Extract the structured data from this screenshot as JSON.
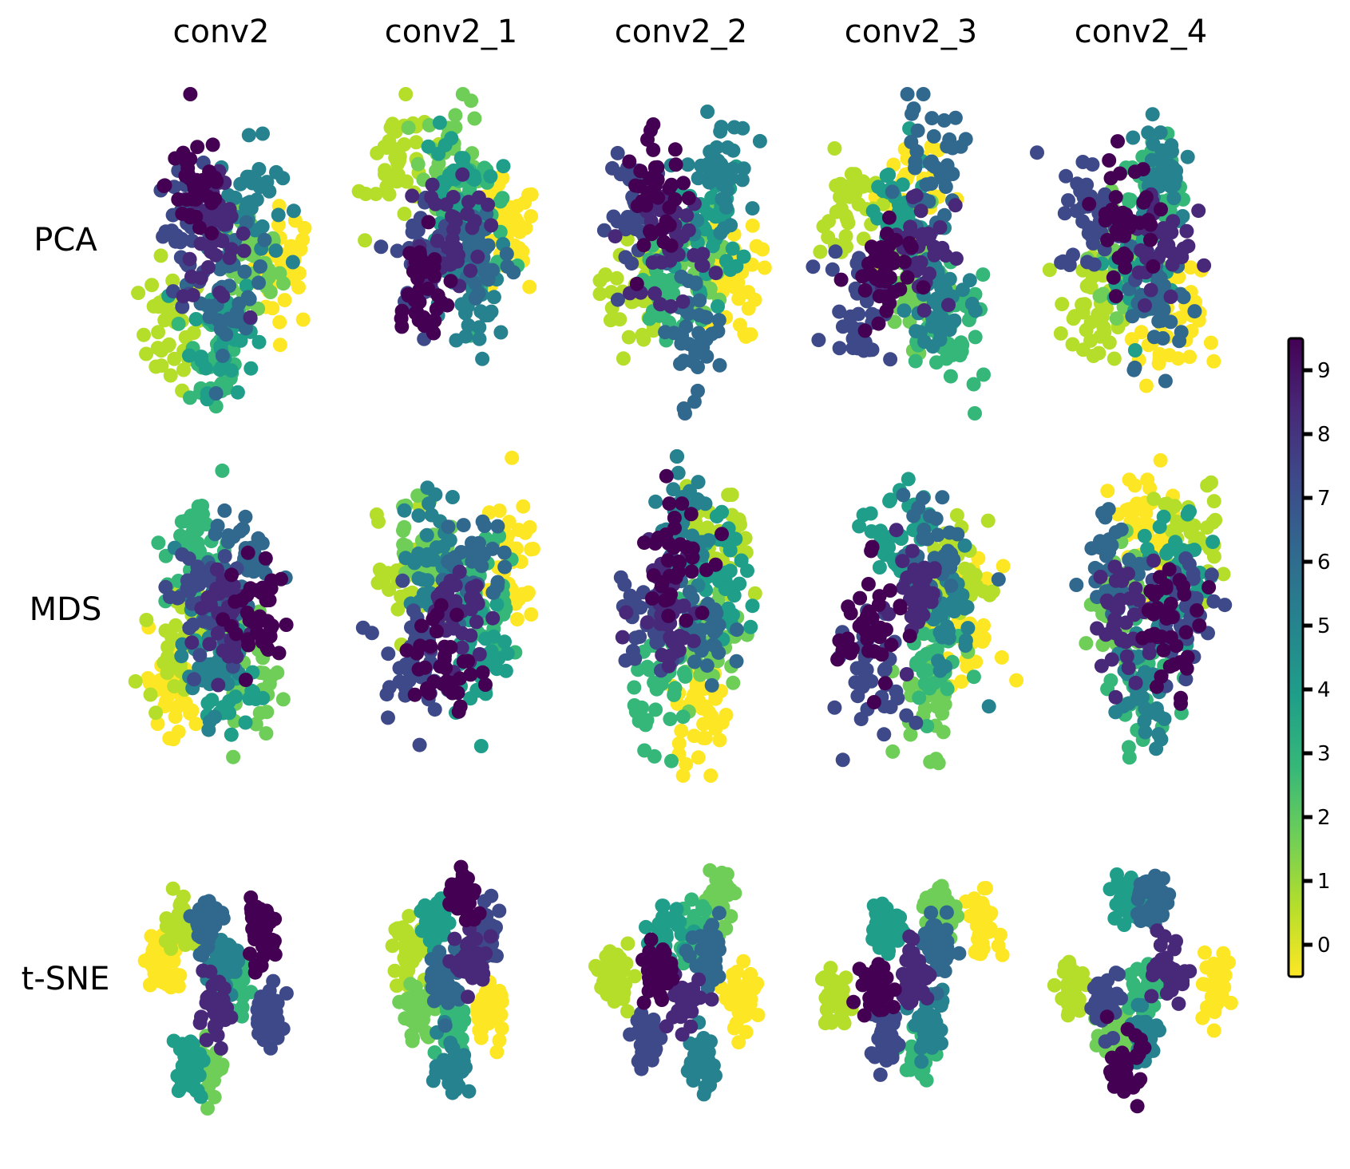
{
  "chart_data": {
    "type": "scatter",
    "columns": [
      "conv2",
      "conv2_1",
      "conv2_2",
      "conv2_3",
      "conv2_4"
    ],
    "rows": [
      "PCA",
      "MDS",
      "t-SNE"
    ],
    "colorbar": {
      "min": 0,
      "max": 9,
      "ticks": [
        0,
        1,
        2,
        3,
        4,
        5,
        6,
        7,
        8,
        9
      ],
      "colormap": "viridis reversed (0 = yellow, 9 = dark purple)"
    },
    "palette": [
      "#fde725",
      "#b5de2b",
      "#6ece58",
      "#35b779",
      "#1f9e89",
      "#26828e",
      "#31688e",
      "#3e4989",
      "#482878",
      "#440154"
    ],
    "panels": [
      {
        "col": "conv2",
        "row": "PCA",
        "clusters": [
          [
            9,
            -0.3,
            0.55
          ],
          [
            8,
            -0.1,
            0.1
          ],
          [
            7,
            -0.4,
            0.2
          ],
          [
            6,
            0.1,
            -0.3
          ],
          [
            5,
            0.3,
            0.4
          ],
          [
            4,
            0.0,
            -0.6
          ],
          [
            3,
            -0.1,
            -0.8
          ],
          [
            2,
            0.3,
            -0.1
          ],
          [
            1,
            -0.6,
            -0.6
          ],
          [
            0,
            0.7,
            -0.1
          ]
        ]
      },
      {
        "col": "conv2_1",
        "row": "PCA",
        "clusters": [
          [
            9,
            -0.4,
            -0.3
          ],
          [
            8,
            0.0,
            0.2
          ],
          [
            7,
            -0.3,
            0.0
          ],
          [
            6,
            0.3,
            0.0
          ],
          [
            5,
            0.2,
            -0.4
          ],
          [
            4,
            0.0,
            0.5
          ],
          [
            3,
            0.3,
            0.3
          ],
          [
            2,
            0.0,
            0.75
          ],
          [
            1,
            -0.6,
            0.7
          ],
          [
            0,
            0.6,
            0.1
          ]
        ]
      },
      {
        "col": "conv2_2",
        "row": "PCA",
        "clusters": [
          [
            9,
            -0.3,
            0.45
          ],
          [
            8,
            -0.1,
            0.1
          ],
          [
            7,
            -0.5,
            0.3
          ],
          [
            6,
            0.1,
            -0.6
          ],
          [
            5,
            0.4,
            0.6
          ],
          [
            4,
            0.3,
            0.2
          ],
          [
            3,
            -0.2,
            -0.3
          ],
          [
            2,
            0.2,
            -0.1
          ],
          [
            1,
            -0.6,
            -0.3
          ],
          [
            0,
            0.5,
            -0.2
          ]
        ]
      },
      {
        "col": "conv2_3",
        "row": "PCA",
        "clusters": [
          [
            9,
            -0.4,
            -0.2
          ],
          [
            8,
            0.1,
            0.1
          ],
          [
            7,
            -0.6,
            -0.4
          ],
          [
            6,
            0.2,
            0.7
          ],
          [
            5,
            0.3,
            -0.4
          ],
          [
            4,
            -0.2,
            0.3
          ],
          [
            3,
            0.5,
            -0.7
          ],
          [
            2,
            0.0,
            -0.2
          ],
          [
            1,
            -0.7,
            0.3
          ],
          [
            0,
            0.0,
            0.5
          ]
        ]
      },
      {
        "col": "conv2_4",
        "row": "PCA",
        "clusters": [
          [
            9,
            -0.2,
            0.3
          ],
          [
            8,
            0.2,
            0.1
          ],
          [
            7,
            -0.6,
            0.3
          ],
          [
            6,
            0.2,
            -0.4
          ],
          [
            5,
            0.2,
            0.7
          ],
          [
            4,
            0.0,
            -0.2
          ],
          [
            3,
            0.1,
            0.5
          ],
          [
            2,
            -0.2,
            0.0
          ],
          [
            1,
            -0.6,
            -0.5
          ],
          [
            0,
            0.3,
            -0.6
          ]
        ]
      },
      {
        "col": "conv2",
        "row": "MDS",
        "clusters": [
          [
            9,
            0.4,
            0.0
          ],
          [
            8,
            0.0,
            0.0
          ],
          [
            7,
            -0.3,
            0.2
          ],
          [
            6,
            0.2,
            0.4
          ],
          [
            5,
            -0.2,
            -0.3
          ],
          [
            4,
            0.0,
            -0.5
          ],
          [
            3,
            -0.3,
            0.5
          ],
          [
            2,
            0.3,
            -0.4
          ],
          [
            1,
            -0.5,
            -0.2
          ],
          [
            0,
            -0.6,
            -0.6
          ]
        ]
      },
      {
        "col": "conv2_1",
        "row": "MDS",
        "clusters": [
          [
            9,
            -0.1,
            -0.4
          ],
          [
            8,
            0.0,
            0.0
          ],
          [
            7,
            -0.5,
            -0.3
          ],
          [
            6,
            0.2,
            0.4
          ],
          [
            5,
            -0.2,
            0.5
          ],
          [
            4,
            0.3,
            -0.3
          ],
          [
            3,
            0.4,
            0.1
          ],
          [
            2,
            -0.3,
            0.6
          ],
          [
            1,
            -0.5,
            0.3
          ],
          [
            0,
            0.6,
            0.4
          ]
        ]
      },
      {
        "col": "conv2_2",
        "row": "MDS",
        "clusters": [
          [
            9,
            -0.1,
            0.5
          ],
          [
            8,
            -0.2,
            0.1
          ],
          [
            7,
            -0.4,
            0.0
          ],
          [
            6,
            0.2,
            -0.2
          ],
          [
            5,
            0.0,
            0.7
          ],
          [
            4,
            0.5,
            0.2
          ],
          [
            3,
            -0.2,
            -0.5
          ],
          [
            2,
            0.3,
            -0.2
          ],
          [
            1,
            0.4,
            0.5
          ],
          [
            0,
            0.2,
            -0.7
          ]
        ]
      },
      {
        "col": "conv2_3",
        "row": "MDS",
        "clusters": [
          [
            9,
            -0.5,
            -0.1
          ],
          [
            8,
            0.0,
            0.2
          ],
          [
            7,
            -0.4,
            -0.5
          ],
          [
            6,
            0.2,
            0.5
          ],
          [
            5,
            0.4,
            0.0
          ],
          [
            4,
            -0.2,
            0.6
          ],
          [
            3,
            0.2,
            -0.3
          ],
          [
            2,
            0.2,
            -0.6
          ],
          [
            1,
            0.5,
            0.3
          ],
          [
            0,
            0.6,
            -0.1
          ]
        ]
      },
      {
        "col": "conv2_4",
        "row": "MDS",
        "clusters": [
          [
            9,
            0.3,
            -0.1
          ],
          [
            8,
            -0.2,
            0.0
          ],
          [
            7,
            0.5,
            0.0
          ],
          [
            6,
            -0.3,
            0.4
          ],
          [
            5,
            0.0,
            -0.5
          ],
          [
            4,
            0.4,
            0.3
          ],
          [
            3,
            0.0,
            -0.6
          ],
          [
            2,
            -0.3,
            0.2
          ],
          [
            1,
            0.5,
            0.6
          ],
          [
            0,
            0.0,
            0.7
          ]
        ]
      },
      {
        "col": "conv2",
        "row": "t-SNE",
        "clusters": [
          [
            9,
            0.4,
            0.4
          ],
          [
            8,
            -0.1,
            -0.2
          ],
          [
            7,
            0.5,
            -0.2
          ],
          [
            6,
            -0.2,
            0.5
          ],
          [
            5,
            0.0,
            0.2
          ],
          [
            4,
            -0.4,
            -0.6
          ],
          [
            3,
            0.1,
            0.0
          ],
          [
            2,
            -0.2,
            -0.6
          ],
          [
            1,
            -0.5,
            0.5
          ],
          [
            0,
            -0.7,
            0.2
          ]
        ]
      },
      {
        "col": "conv2_1",
        "row": "t-SNE",
        "clusters": [
          [
            9,
            0.1,
            0.7
          ],
          [
            8,
            0.2,
            0.2
          ],
          [
            7,
            0.4,
            0.4
          ],
          [
            6,
            -0.1,
            0.1
          ],
          [
            5,
            0.0,
            -0.6
          ],
          [
            4,
            -0.2,
            0.5
          ],
          [
            3,
            0.0,
            -0.3
          ],
          [
            2,
            -0.4,
            -0.2
          ],
          [
            1,
            -0.5,
            0.3
          ],
          [
            0,
            0.4,
            -0.2
          ]
        ]
      },
      {
        "col": "conv2_2",
        "row": "t-SNE",
        "clusters": [
          [
            9,
            -0.3,
            0.1
          ],
          [
            8,
            0.0,
            -0.1
          ],
          [
            7,
            -0.4,
            -0.4
          ],
          [
            6,
            0.3,
            0.2
          ],
          [
            5,
            0.2,
            -0.6
          ],
          [
            4,
            -0.2,
            0.4
          ],
          [
            3,
            0.1,
            0.4
          ],
          [
            2,
            0.4,
            0.7
          ],
          [
            1,
            -0.8,
            0.1
          ],
          [
            0,
            0.7,
            -0.1
          ]
        ]
      },
      {
        "col": "conv2_3",
        "row": "t-SNE",
        "clusters": [
          [
            9,
            -0.4,
            0.0
          ],
          [
            8,
            0.0,
            0.1
          ],
          [
            7,
            -0.3,
            -0.4
          ],
          [
            6,
            0.3,
            0.3
          ],
          [
            5,
            0.2,
            -0.3
          ],
          [
            4,
            -0.3,
            0.5
          ],
          [
            3,
            0.1,
            -0.5
          ],
          [
            2,
            0.3,
            0.6
          ],
          [
            1,
            -0.9,
            -0.1
          ],
          [
            0,
            0.8,
            0.5
          ]
        ]
      },
      {
        "col": "conv2_4",
        "row": "t-SNE",
        "clusters": [
          [
            9,
            -0.2,
            -0.6
          ],
          [
            8,
            0.3,
            0.1
          ],
          [
            7,
            -0.4,
            -0.1
          ],
          [
            6,
            0.1,
            0.7
          ],
          [
            5,
            0.0,
            -0.4
          ],
          [
            4,
            -0.2,
            0.7
          ],
          [
            3,
            0.0,
            0.0
          ],
          [
            2,
            -0.3,
            -0.3
          ],
          [
            1,
            -0.8,
            0.0
          ],
          [
            0,
            0.8,
            0.0
          ]
        ]
      }
    ]
  }
}
